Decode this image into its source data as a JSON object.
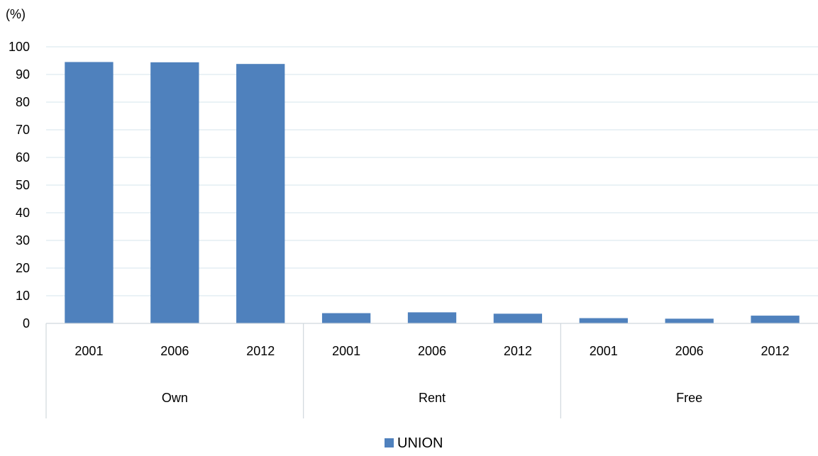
{
  "chart_data": {
    "type": "bar",
    "y_unit_label": "(%)",
    "ylim": [
      0,
      100
    ],
    "yticks": [
      0,
      10,
      20,
      30,
      40,
      50,
      60,
      70,
      80,
      90,
      100
    ],
    "grid": true,
    "legend_position": "bottom",
    "groups": [
      {
        "label": "Own",
        "categories": [
          "2001",
          "2006",
          "2012"
        ]
      },
      {
        "label": "Rent",
        "categories": [
          "2001",
          "2006",
          "2012"
        ]
      },
      {
        "label": "Free",
        "categories": [
          "2001",
          "2006",
          "2012"
        ]
      }
    ],
    "series": [
      {
        "name": "UNION",
        "color": "#4F81BD",
        "values": [
          94.5,
          94.4,
          93.8,
          3.7,
          4.0,
          3.5,
          1.9,
          1.7,
          2.8
        ]
      }
    ]
  }
}
